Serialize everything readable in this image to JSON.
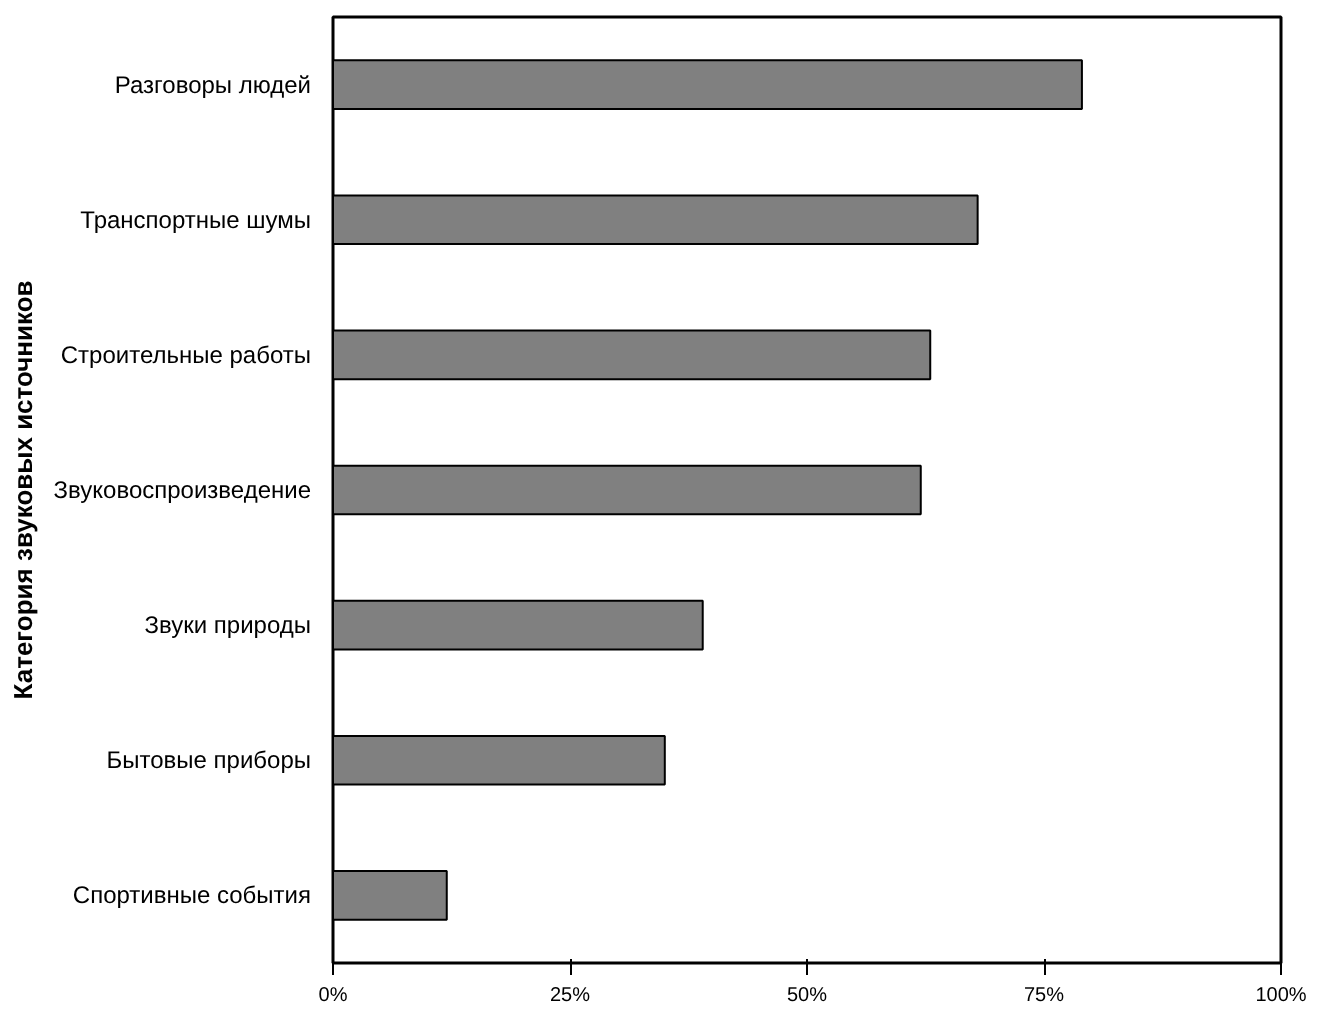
{
  "chart_data": {
    "type": "bar",
    "orientation": "horizontal",
    "ylabel": "Категория звуковых источников",
    "categories": [
      "Разговоры людей",
      "Транспортные шумы",
      "Строительные работы",
      "Звуковоспроизведение",
      "Звуки природы",
      "Бытовые приборы",
      "Спортивные события"
    ],
    "values": [
      79,
      68,
      63,
      62,
      39,
      35,
      12
    ],
    "color": "#808080",
    "xlim": [
      0,
      100
    ],
    "xticks": [
      {
        "value": 0,
        "label": "0%"
      },
      {
        "value": 25,
        "label": "25%"
      },
      {
        "value": 50,
        "label": "50%"
      },
      {
        "value": 75,
        "label": "75%"
      },
      {
        "value": 100,
        "label": "100%"
      }
    ],
    "grid": false
  }
}
